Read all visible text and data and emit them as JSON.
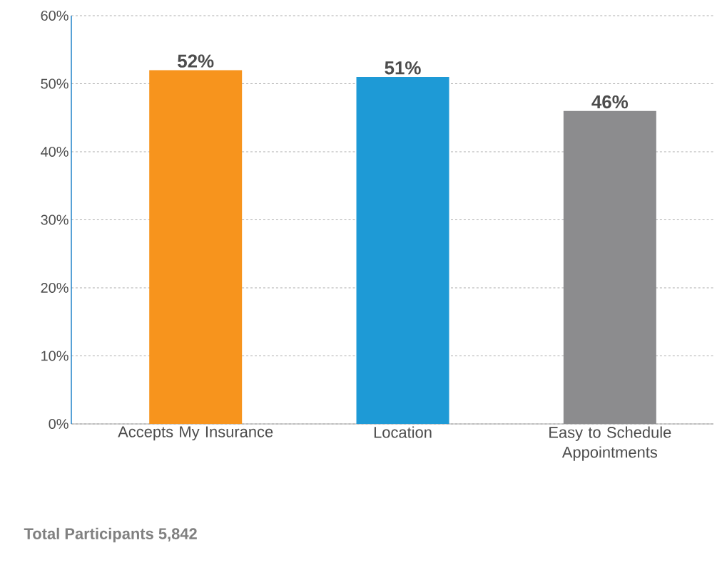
{
  "chart_data": {
    "type": "bar",
    "categories": [
      "Accepts My Insurance",
      "Location",
      "Easy to Schedule Appointments"
    ],
    "values": [
      52,
      51,
      46
    ],
    "colors": [
      "#f7941d",
      "#1e9ad6",
      "#8c8c8e"
    ],
    "value_labels": [
      "52%",
      "51%",
      "46%"
    ],
    "ylim": [
      0,
      60
    ],
    "yticks": [
      {
        "value": 0,
        "label": "0%"
      },
      {
        "value": 10,
        "label": "10%"
      },
      {
        "value": 20,
        "label": "20%"
      },
      {
        "value": 30,
        "label": "30%"
      },
      {
        "value": 40,
        "label": "40%"
      },
      {
        "value": 50,
        "label": "50%"
      },
      {
        "value": 60,
        "label": "60%"
      }
    ],
    "grid": "y",
    "annotations": [
      "Total Participants 5,842"
    ]
  }
}
